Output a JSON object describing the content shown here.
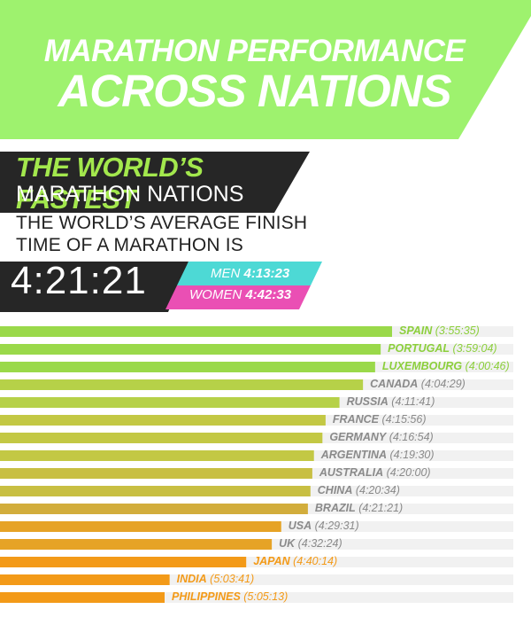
{
  "header": {
    "title_line1": "MARATHON PERFORMANCE",
    "title_line2": "ACROSS NATIONS",
    "bg_color": "#9ef26e"
  },
  "summary": {
    "headline_accent": "THE WORLD’S FASTEST",
    "headline_main": "MARATHON NATIONS",
    "avg_line1": "THE WORLD’S AVERAGE FINISH",
    "avg_line2": "TIME OF A MARATHON IS",
    "avg_time": "4:21:21",
    "men_label": "MEN",
    "men_time": "4:13:23",
    "women_label": "WOMEN",
    "women_time": "4:42:33",
    "men_color": "#4dd9d5",
    "women_color": "#ea4fb4",
    "accent_color": "#a3e84d",
    "dark_color": "#262626"
  },
  "chart_data": {
    "type": "bar",
    "orientation": "horizontal",
    "categories": [
      "SPAIN",
      "PORTUGAL",
      "LUXEMBOURG",
      "CANADA",
      "RUSSIA",
      "FRANCE",
      "GERMANY",
      "ARGENTINA",
      "AUSTRALIA",
      "CHINA",
      "BRAZIL",
      "USA",
      "UK",
      "JAPAN",
      "INDIA",
      "PHILIPPINES"
    ],
    "times": [
      "3:55:35",
      "3:59:04",
      "4:00:46",
      "4:04:29",
      "4:11:41",
      "4:15:56",
      "4:16:54",
      "4:19:30",
      "4:20:00",
      "4:20:34",
      "4:21:21",
      "4:29:31",
      "4:32:24",
      "4:40:14",
      "5:03:41",
      "5:05:13"
    ],
    "values_seconds": [
      14135,
      14344,
      14446,
      14669,
      15101,
      15356,
      15414,
      15570,
      15600,
      15634,
      15681,
      16171,
      16344,
      16814,
      18221,
      18313
    ],
    "colors": [
      "#9ad94a",
      "#9ad94a",
      "#9ad94a",
      "#b6d148",
      "#b6d148",
      "#c3c844",
      "#c3c844",
      "#c3c844",
      "#c8bf42",
      "#c8bf42",
      "#d2ad3c",
      "#e6a326",
      "#e6a326",
      "#f39a18",
      "#f39a18",
      "#f39a18"
    ],
    "label_colors": [
      "#8ccf3c",
      "#8ccf3c",
      "#8ccf3c",
      "#8a8a8a",
      "#8a8a8a",
      "#8a8a8a",
      "#8a8a8a",
      "#8a8a8a",
      "#8a8a8a",
      "#8a8a8a",
      "#8a8a8a",
      "#8a8a8a",
      "#8a8a8a",
      "#f39a18",
      "#f39a18",
      "#f39a18"
    ],
    "fastest_to_slowest": true
  }
}
